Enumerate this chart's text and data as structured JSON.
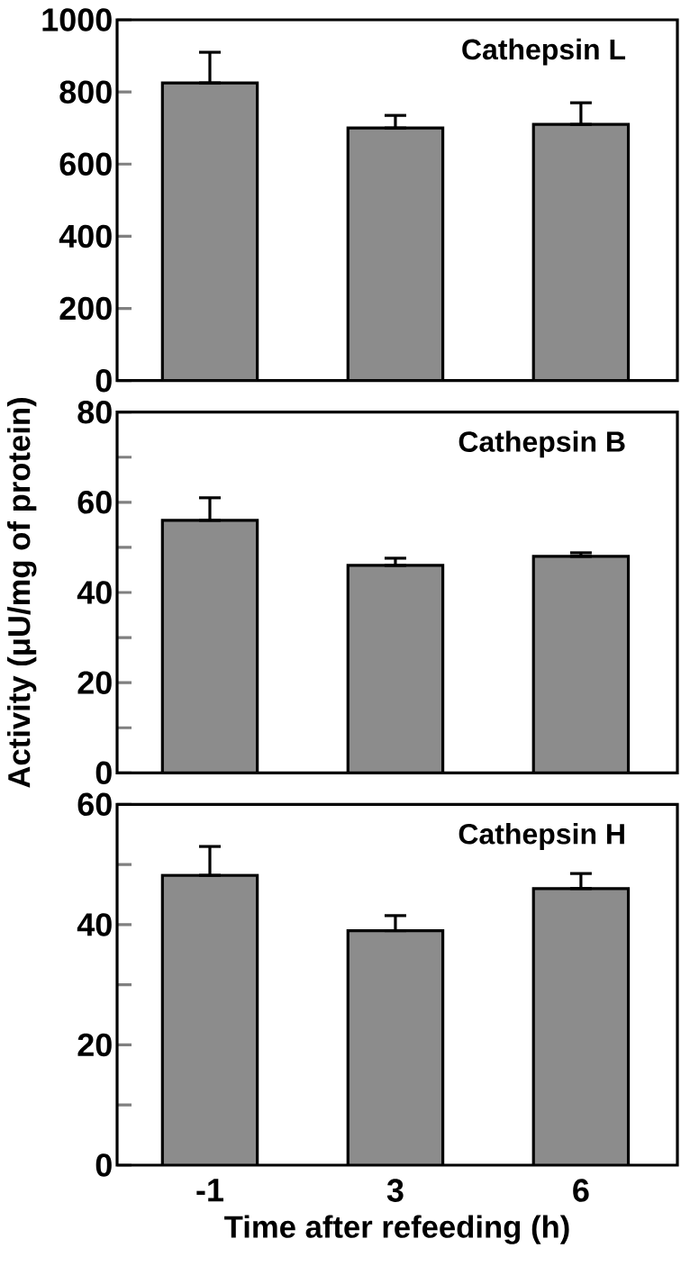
{
  "chart_data": [
    {
      "type": "bar",
      "title": "Cathepsin L",
      "categories": [
        "-1",
        "3",
        "6"
      ],
      "values": [
        825,
        700,
        710
      ],
      "errors": [
        [
          825,
          910
        ],
        [
          700,
          735
        ],
        [
          710,
          770
        ]
      ],
      "color": "#8c8c8c",
      "ylim": [
        0,
        1000
      ],
      "yticks": [
        0,
        200,
        400,
        600,
        800,
        1000
      ],
      "tick_labels": "y"
    },
    {
      "type": "bar",
      "title": "Cathepsin B",
      "ylabel": "Activity (μU/mg of protein)",
      "categories": [
        "-1",
        "3",
        "6"
      ],
      "values": [
        56,
        46,
        48
      ],
      "errors": [
        [
          56,
          61
        ],
        [
          46,
          47.6
        ],
        [
          48,
          48.8
        ]
      ],
      "color": "#8c8c8c",
      "ylim": [
        0,
        80
      ],
      "yticks": [
        0,
        {
          "value": 10,
          "label": null
        },
        20,
        {
          "value": 30,
          "label": null
        },
        40,
        {
          "value": 50,
          "label": null
        },
        60,
        {
          "value": 70,
          "label": null
        },
        80
      ],
      "tick_labels": "y"
    },
    {
      "type": "bar",
      "title": "Cathepsin H",
      "xlabel": "Time after refeeding (h)",
      "categories": [
        "-1",
        "3",
        "6"
      ],
      "values": [
        48.2,
        39,
        46
      ],
      "errors": [
        [
          48.2,
          53
        ],
        [
          39,
          41.5
        ],
        [
          46,
          48.5
        ]
      ],
      "color": "#8c8c8c",
      "ylim": [
        0,
        60
      ],
      "yticks": [
        0,
        {
          "value": 10,
          "label": null
        },
        20,
        {
          "value": 30,
          "label": null
        },
        40,
        {
          "value": 50,
          "label": null
        },
        60
      ]
    }
  ]
}
